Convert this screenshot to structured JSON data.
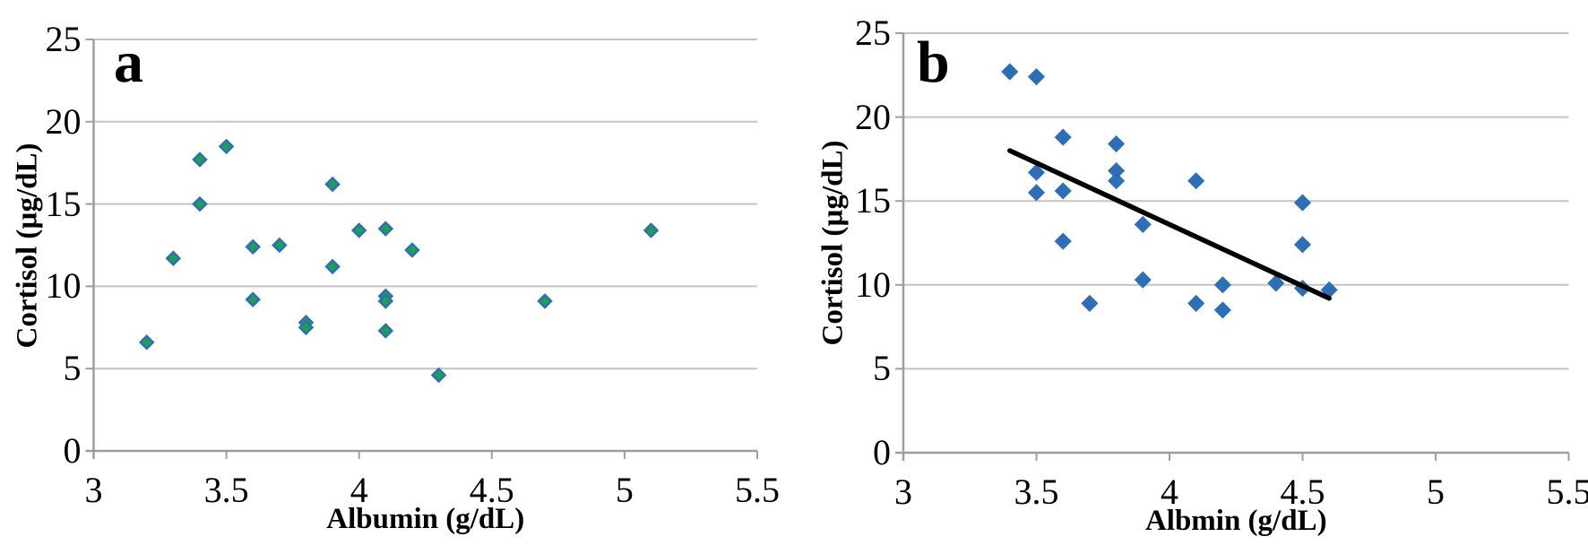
{
  "figure": {
    "background": "#ffffff",
    "grid_color": "#c3c3c3",
    "axis_color": "#9e9e9e",
    "text_color": "#000000"
  },
  "chart_data": [
    {
      "type": "scatter",
      "panel_label": "a",
      "xlabel": "Albumin (g/dL)",
      "ylabel": "Cortisol (µg/dL)",
      "xlim": [
        3,
        5.5
      ],
      "ylim": [
        0,
        25
      ],
      "x_tick_values": [
        3,
        3.5,
        4,
        4.5,
        5,
        5.5
      ],
      "x_tick_labels": [
        "3",
        "3.5",
        "4",
        "4.5",
        "5",
        "5.5"
      ],
      "y_tick_values": [
        0,
        5,
        10,
        15,
        20,
        25
      ],
      "y_tick_labels": [
        "0",
        "5",
        "10",
        "15",
        "20",
        "25"
      ],
      "grid": "horizontal",
      "legend": "none",
      "marker": {
        "shape": "diamond",
        "fill": "#1da151",
        "stroke": "#2c6fb7",
        "stroke_width": 2.5,
        "radius": 7
      },
      "points": [
        [
          3.2,
          6.6
        ],
        [
          3.3,
          11.7
        ],
        [
          3.4,
          17.7
        ],
        [
          3.4,
          15.0
        ],
        [
          3.5,
          18.5
        ],
        [
          3.6,
          12.4
        ],
        [
          3.6,
          9.2
        ],
        [
          3.7,
          12.5
        ],
        [
          3.8,
          7.8
        ],
        [
          3.8,
          7.5
        ],
        [
          3.9,
          16.2
        ],
        [
          3.9,
          11.2
        ],
        [
          4.0,
          13.4
        ],
        [
          4.1,
          13.5
        ],
        [
          4.1,
          9.4
        ],
        [
          4.1,
          9.1
        ],
        [
          4.1,
          7.3
        ],
        [
          4.2,
          12.2
        ],
        [
          4.3,
          4.6
        ],
        [
          4.7,
          9.1
        ],
        [
          5.1,
          13.4
        ]
      ]
    },
    {
      "type": "scatter",
      "panel_label": "b",
      "xlabel": "Albmin (g/dL)",
      "ylabel": "Cortisol (µg/dL)",
      "xlim": [
        3,
        5.5
      ],
      "ylim": [
        0,
        25
      ],
      "x_tick_values": [
        3,
        3.5,
        4,
        4.5,
        5,
        5.5
      ],
      "x_tick_labels": [
        "3",
        "3.5",
        "4",
        "4.5",
        "5",
        "5.5"
      ],
      "y_tick_values": [
        0,
        5,
        10,
        15,
        20,
        25
      ],
      "y_tick_labels": [
        "0",
        "5",
        "10",
        "15",
        "20",
        "25"
      ],
      "grid": "horizontal",
      "legend": "none",
      "marker": {
        "shape": "diamond",
        "fill": "#2c6fb7",
        "stroke": "#2c6fb7",
        "stroke_width": 1.5,
        "radius": 8.5
      },
      "points": [
        [
          3.4,
          22.7
        ],
        [
          3.5,
          22.4
        ],
        [
          3.5,
          16.7
        ],
        [
          3.5,
          15.5
        ],
        [
          3.6,
          18.8
        ],
        [
          3.6,
          15.6
        ],
        [
          3.6,
          12.6
        ],
        [
          3.7,
          8.9
        ],
        [
          3.8,
          18.4
        ],
        [
          3.8,
          16.8
        ],
        [
          3.8,
          16.2
        ],
        [
          3.9,
          13.6
        ],
        [
          3.9,
          10.3
        ],
        [
          4.1,
          16.2
        ],
        [
          4.1,
          8.9
        ],
        [
          4.2,
          10.0
        ],
        [
          4.2,
          8.5
        ],
        [
          4.4,
          10.1
        ],
        [
          4.5,
          14.9
        ],
        [
          4.5,
          12.4
        ],
        [
          4.5,
          9.8
        ],
        [
          4.6,
          9.7
        ]
      ],
      "trendline": {
        "x1": 3.4,
        "y1": 18.0,
        "x2": 4.6,
        "y2": 9.2,
        "color": "#000000",
        "width": 5.5
      }
    }
  ]
}
